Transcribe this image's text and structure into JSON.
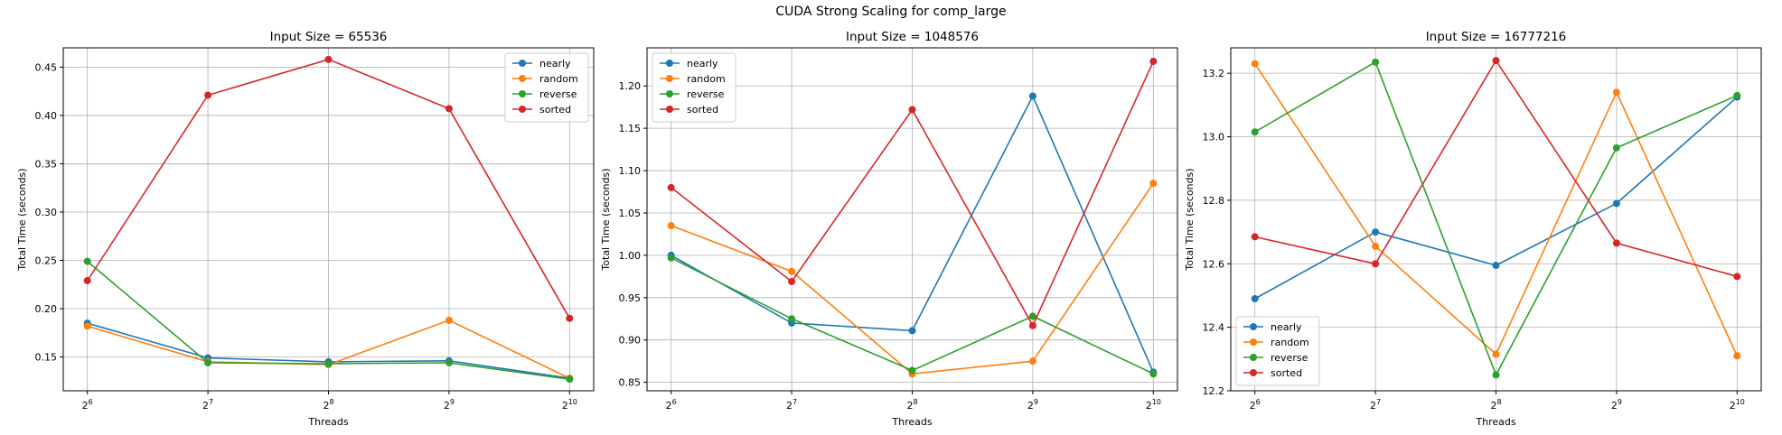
{
  "figure": {
    "title": "CUDA Strong Scaling for comp_large"
  },
  "series_colors": {
    "nearly": "#1f77b4",
    "random": "#ff7f0e",
    "reverse": "#2ca02c",
    "sorted": "#d62728"
  },
  "chart_data": [
    {
      "type": "line",
      "title": "Input Size = 65536",
      "xlabel": "Threads",
      "ylabel": "Total Time (seconds)",
      "x": [
        64,
        128,
        256,
        512,
        1024
      ],
      "x_tick_labels": [
        {
          "base": "2",
          "exp": "6"
        },
        {
          "base": "2",
          "exp": "7"
        },
        {
          "base": "2",
          "exp": "8"
        },
        {
          "base": "2",
          "exp": "9"
        },
        {
          "base": "2",
          "exp": "10"
        }
      ],
      "x_scale": "log2",
      "ylim": [
        0.115,
        0.47
      ],
      "y_ticks": [
        0.15,
        0.2,
        0.25,
        0.3,
        0.35,
        0.4,
        0.45
      ],
      "y_tick_labels": [
        "0.15",
        "0.20",
        "0.25",
        "0.30",
        "0.35",
        "0.40",
        "0.45"
      ],
      "grid": true,
      "legend_position": "top-right",
      "series": [
        {
          "name": "nearly",
          "values": [
            0.185,
            0.149,
            0.145,
            0.146,
            0.128
          ]
        },
        {
          "name": "random",
          "values": [
            0.182,
            0.145,
            0.142,
            0.188,
            0.128
          ]
        },
        {
          "name": "reverse",
          "values": [
            0.249,
            0.144,
            0.143,
            0.144,
            0.127
          ]
        },
        {
          "name": "sorted",
          "values": [
            0.229,
            0.421,
            0.458,
            0.407,
            0.19
          ]
        }
      ]
    },
    {
      "type": "line",
      "title": "Input Size = 1048576",
      "xlabel": "Threads",
      "ylabel": "Total Time (seconds)",
      "x": [
        64,
        128,
        256,
        512,
        1024
      ],
      "x_tick_labels": [
        {
          "base": "2",
          "exp": "6"
        },
        {
          "base": "2",
          "exp": "7"
        },
        {
          "base": "2",
          "exp": "8"
        },
        {
          "base": "2",
          "exp": "9"
        },
        {
          "base": "2",
          "exp": "10"
        }
      ],
      "x_scale": "log2",
      "ylim": [
        0.84,
        1.245
      ],
      "y_ticks": [
        0.85,
        0.9,
        0.95,
        1.0,
        1.05,
        1.1,
        1.15,
        1.2
      ],
      "y_tick_labels": [
        "0.85",
        "0.90",
        "0.95",
        "1.00",
        "1.05",
        "1.10",
        "1.15",
        "1.20"
      ],
      "grid": true,
      "legend_position": "top-left",
      "series": [
        {
          "name": "nearly",
          "values": [
            1.0,
            0.92,
            0.911,
            1.188,
            0.862
          ]
        },
        {
          "name": "random",
          "values": [
            1.035,
            0.981,
            0.86,
            0.875,
            1.085
          ]
        },
        {
          "name": "reverse",
          "values": [
            0.997,
            0.925,
            0.864,
            0.928,
            0.86
          ]
        },
        {
          "name": "sorted",
          "values": [
            1.08,
            0.969,
            1.172,
            0.917,
            1.229
          ]
        }
      ]
    },
    {
      "type": "line",
      "title": "Input Size = 16777216",
      "xlabel": "Threads",
      "ylabel": "Total Time (seconds)",
      "x": [
        64,
        128,
        256,
        512,
        1024
      ],
      "x_tick_labels": [
        {
          "base": "2",
          "exp": "6"
        },
        {
          "base": "2",
          "exp": "7"
        },
        {
          "base": "2",
          "exp": "8"
        },
        {
          "base": "2",
          "exp": "9"
        },
        {
          "base": "2",
          "exp": "10"
        }
      ],
      "x_scale": "log2",
      "ylim": [
        12.2,
        13.28
      ],
      "y_ticks": [
        12.2,
        12.4,
        12.6,
        12.8,
        13.0,
        13.2
      ],
      "y_tick_labels": [
        "12.2",
        "12.4",
        "12.6",
        "12.8",
        "13.0",
        "13.2"
      ],
      "grid": true,
      "legend_position": "bottom-left",
      "series": [
        {
          "name": "nearly",
          "values": [
            12.49,
            12.7,
            12.595,
            12.79,
            13.125
          ]
        },
        {
          "name": "random",
          "values": [
            13.23,
            12.655,
            12.315,
            13.14,
            12.31
          ]
        },
        {
          "name": "reverse",
          "values": [
            13.015,
            13.235,
            12.25,
            12.965,
            13.13
          ]
        },
        {
          "name": "sorted",
          "values": [
            12.685,
            12.6,
            13.24,
            12.665,
            12.56
          ]
        }
      ]
    }
  ]
}
